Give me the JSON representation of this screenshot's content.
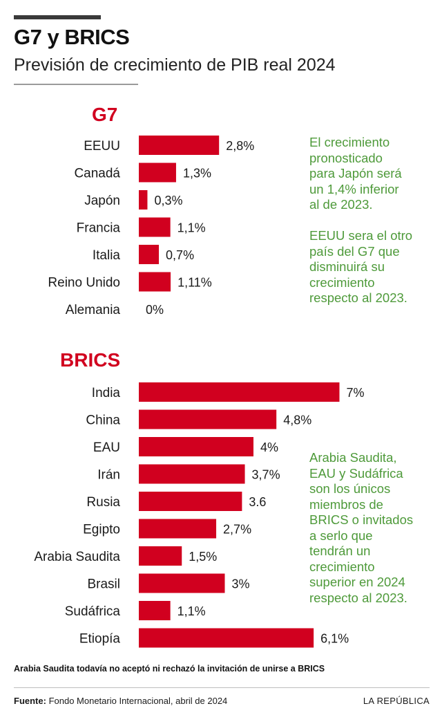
{
  "header": {
    "title": "G7 y BRICS",
    "subtitle": "Previsión de crecimiento de PIB real 2024"
  },
  "colors": {
    "bar": "#d1001f",
    "note": "#4e9a3a"
  },
  "chart_data": [
    {
      "type": "bar",
      "orientation": "horizontal",
      "title": "G7",
      "categories": [
        "EEUU",
        "Canadá",
        "Japón",
        "Francia",
        "Italia",
        "Reino Unido",
        "Alemania"
      ],
      "values": [
        2.8,
        1.3,
        0.3,
        1.1,
        0.7,
        1.11,
        0
      ],
      "value_labels": [
        "2,8%",
        "1,3%",
        "0,3%",
        "1,1%",
        "0,7%",
        "1,11%",
        "0%"
      ],
      "unit": "%",
      "grid": false
    },
    {
      "type": "bar",
      "orientation": "horizontal",
      "title": "BRICS",
      "categories": [
        "India",
        "China",
        "EAU",
        "Irán",
        "Rusia",
        "Egipto",
        "Arabia Saudita",
        "Brasil",
        "Sudáfrica",
        "Etiopía"
      ],
      "values": [
        7,
        4.8,
        4,
        3.7,
        3.6,
        2.7,
        1.5,
        3,
        1.1,
        6.1
      ],
      "value_labels": [
        "7%",
        "4,8%",
        "4%",
        "3,7%",
        "3.6",
        "2,7%",
        "1,5%",
        "3%",
        "1,1%",
        "6,1%"
      ],
      "unit": "%",
      "grid": false
    }
  ],
  "notes": {
    "g7": "El crecimiento\npronosticado\npara Japón será\nun 1,4% inferior\nal de 2023.\n\nEEUU sera el otro\npaís del G7 que\ndisminuirá su\ncrecimiento\nrespecto al 2023.",
    "brics": "Arabia Saudita,\nEAU y Sudáfrica\nson los únicos\nmiembros de\nBRICS o invitados\na serlo que\ntendrán un\ncrecimiento\nsuperior en 2024\nrespecto al 2023."
  },
  "footnote": "Arabia Saudita todavía no aceptó ni rechazó la invitación de unirse a BRICS",
  "footer": {
    "source_label": "Fuente:",
    "source_text": " Fondo Monetario Internacional, abril de 2024",
    "brand": "LA REPÚBLICA"
  }
}
